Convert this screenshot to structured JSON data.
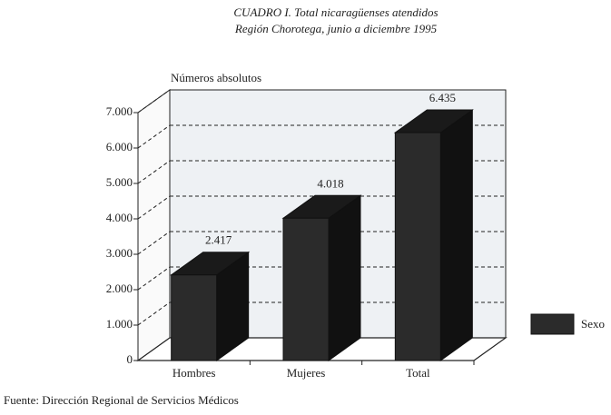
{
  "chart_data": {
    "type": "bar",
    "title": "CUADRO I. Total nicaragüenses atendidos",
    "subtitle": "Región Chorotega, junio a diciembre 1995",
    "y_label": "Números absolutos",
    "categories": [
      "Hombres",
      "Mujeres",
      "Total"
    ],
    "series": [
      {
        "name": "Sexo",
        "color": "#2b2b2b",
        "values": [
          2417,
          4018,
          6435
        ],
        "value_labels": [
          "2.417",
          "4.018",
          "6.435"
        ]
      }
    ],
    "ylim": [
      0,
      7000
    ],
    "yticks": [
      0,
      {
        "value": 1000,
        "label": "1.000"
      },
      {
        "value": 2000,
        "label": "2.000"
      },
      {
        "value": 3000,
        "label": "3.000"
      },
      {
        "value": 4000,
        "label": "4.000"
      },
      {
        "value": 5000,
        "label": "5.000"
      },
      {
        "value": 6000,
        "label": "6.000"
      },
      {
        "value": 7000,
        "label": "7.000"
      }
    ],
    "grid": true,
    "legend": "right",
    "source": "Fuente: Dirección Regional de Servicios Médicos"
  }
}
